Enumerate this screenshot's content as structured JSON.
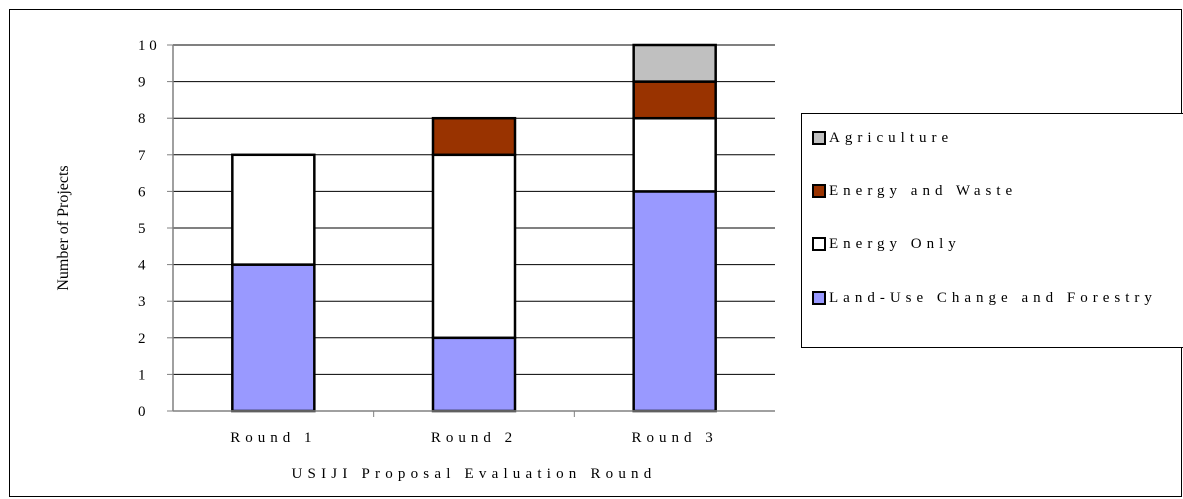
{
  "chart_data": {
    "type": "bar",
    "stacked": true,
    "categories": [
      "Round 1",
      "Round 2",
      "Round 3"
    ],
    "series": [
      {
        "name": "Land-Use Change and Forestry",
        "values": [
          4,
          2,
          6
        ],
        "color": "#9999ff"
      },
      {
        "name": "Energy Only",
        "values": [
          3,
          5,
          2
        ],
        "color": "#ffffff"
      },
      {
        "name": "Energy and Waste",
        "values": [
          0,
          1,
          1
        ],
        "color": "#993300"
      },
      {
        "name": "Agriculture",
        "values": [
          0,
          0,
          1
        ],
        "color": "#c0c0c0"
      }
    ],
    "legend_order": [
      3,
      2,
      1,
      0
    ],
    "title": "",
    "xlabel": "USIJI Proposal Evaluation Round",
    "ylabel": "Number of Projects",
    "ylim": [
      0,
      10
    ],
    "yticks": [
      "0",
      "1",
      "2",
      "3",
      "4",
      "5",
      "6",
      "7",
      "8",
      "9",
      "1 0"
    ],
    "grid": true,
    "legend_position": "right"
  }
}
